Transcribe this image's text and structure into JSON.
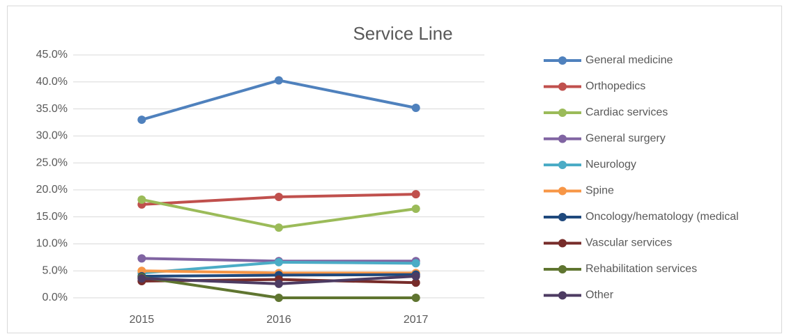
{
  "chart_data": {
    "type": "line",
    "title": "Service Line",
    "categories": [
      "2015",
      "2016",
      "2017"
    ],
    "series": [
      {
        "name": "General medicine",
        "color": "#4f81bd",
        "values": [
          33.0,
          40.3,
          35.2
        ]
      },
      {
        "name": "Orthopedics",
        "color": "#c0504d",
        "values": [
          17.3,
          18.7,
          19.2
        ]
      },
      {
        "name": "Cardiac services",
        "color": "#9bbb59",
        "values": [
          18.2,
          13.0,
          16.5
        ]
      },
      {
        "name": "General surgery",
        "color": "#8064a2",
        "values": [
          7.3,
          6.8,
          6.8
        ]
      },
      {
        "name": "Neurology",
        "color": "#4bacc6",
        "values": [
          4.6,
          6.6,
          6.4
        ]
      },
      {
        "name": "Spine",
        "color": "#f79646",
        "values": [
          5.0,
          4.6,
          4.6
        ]
      },
      {
        "name": "Oncology/hematology (medical",
        "color": "#1f497d",
        "values": [
          4.0,
          4.2,
          4.3
        ]
      },
      {
        "name": "Vascular services",
        "color": "#772c2a",
        "values": [
          3.1,
          3.4,
          2.8
        ]
      },
      {
        "name": "Rehabilitation services",
        "color": "#5f7530",
        "values": [
          3.8,
          0.0,
          0.0
        ]
      },
      {
        "name": "Other",
        "color": "#4d3b62",
        "values": [
          3.6,
          2.6,
          4.0
        ]
      }
    ],
    "ylim": [
      0,
      45
    ],
    "yticks": [
      {
        "value": 0,
        "label": "0.0%"
      },
      {
        "value": 5,
        "label": "5.0%"
      },
      {
        "value": 10,
        "label": "10.0%"
      },
      {
        "value": 15,
        "label": "15.0%"
      },
      {
        "value": 20,
        "label": "20.0%"
      },
      {
        "value": 25,
        "label": "25.0%"
      },
      {
        "value": 30,
        "label": "30.0%"
      },
      {
        "value": 35,
        "label": "35.0%"
      },
      {
        "value": 40,
        "label": "40.0%"
      },
      {
        "value": 45,
        "label": "45.0%"
      }
    ],
    "grid": true,
    "legend": "right"
  }
}
